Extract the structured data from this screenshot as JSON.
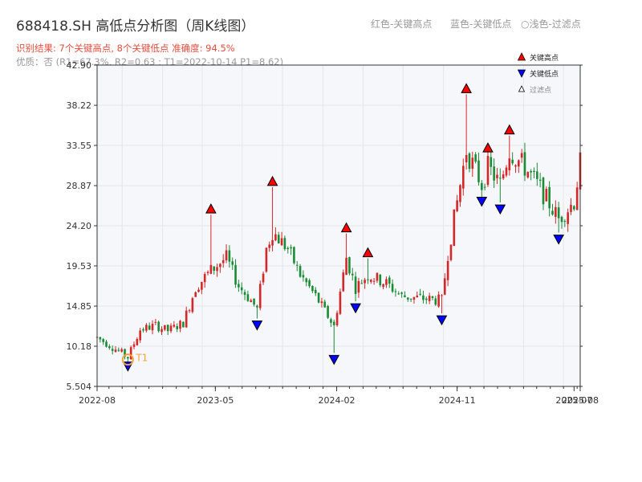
{
  "header": {
    "title": "688418.SH 高低点分析图（周K线图）",
    "result": "识别结果: 7个关键高点, 8个关键低点  准确度: 94.5%",
    "quality": "优质：否  (R1=67.3%, R2=0.63 ; T1=2022-10-14 P1=8.62)",
    "legend_red": "红色-关键高点",
    "legend_blue": "蓝色-关键低点",
    "legend_light": "○浅色-过滤点"
  },
  "colors": {
    "up": "#d62728",
    "down": "#1a8c35",
    "high_marker": "#ff0000",
    "low_marker": "#0000ff",
    "t1_marker": "#f2a43a",
    "plot_bg": "#f5f7fa"
  },
  "chart_data": {
    "type": "candlestick",
    "x_start": "2022-08-05",
    "x_end": "2025-08-08",
    "interval": "weekly",
    "ylim": [
      5.504,
      42.9
    ],
    "yticks": [
      "5.504",
      "10.18",
      "14.85",
      "19.53",
      "24.20",
      "28.87",
      "33.55",
      "38.22",
      "42.90"
    ],
    "xticks": [
      "2022-08",
      "2023-05",
      "2024-02",
      "2024-11",
      "2025-07",
      "2025-08"
    ],
    "legend": {
      "high": "关键高点",
      "low": "关键低点",
      "filtered": "过滤点"
    },
    "key_highs": [
      {
        "date": "2023-04-21",
        "value": 25.5
      },
      {
        "date": "2023-09-08",
        "value": 28.7
      },
      {
        "date": "2024-02-23",
        "value": 23.3
      },
      {
        "date": "2024-04-12",
        "value": 20.4
      },
      {
        "date": "2024-11-22",
        "value": 39.5
      },
      {
        "date": "2025-01-10",
        "value": 32.6
      },
      {
        "date": "2025-02-28",
        "value": 34.7
      }
    ],
    "key_lows": [
      {
        "date": "2022-10-14",
        "value": 8.62
      },
      {
        "date": "2023-08-04",
        "value": 13.4
      },
      {
        "date": "2024-01-26",
        "value": 9.4
      },
      {
        "date": "2024-03-15",
        "value": 15.4
      },
      {
        "date": "2024-09-27",
        "value": 14.0
      },
      {
        "date": "2024-12-27",
        "value": 27.8
      },
      {
        "date": "2025-02-07",
        "value": 26.9
      },
      {
        "date": "2025-06-20",
        "value": 23.4
      }
    ],
    "t1": {
      "label": "T1",
      "date": "2022-10-14",
      "value": 8.62
    },
    "anchors": [
      [
        "2022-08-05",
        11.2
      ],
      [
        "2022-09-02",
        10.3
      ],
      [
        "2022-10-14",
        8.9
      ],
      [
        "2022-11-11",
        12.1
      ],
      [
        "2022-12-16",
        12.6
      ],
      [
        "2023-01-13",
        12.0
      ],
      [
        "2023-02-17",
        12.9
      ],
      [
        "2023-03-17",
        17.0
      ],
      [
        "2023-04-21",
        19.0
      ],
      [
        "2023-05-26",
        20.5
      ],
      [
        "2023-06-23",
        17.2
      ],
      [
        "2023-07-21",
        15.5
      ],
      [
        "2023-08-04",
        14.5
      ],
      [
        "2023-08-25",
        21.5
      ],
      [
        "2023-09-08",
        23.5
      ],
      [
        "2023-10-13",
        21.5
      ],
      [
        "2023-11-10",
        18.5
      ],
      [
        "2023-12-15",
        16.0
      ],
      [
        "2024-01-26",
        12.5
      ],
      [
        "2024-02-23",
        20.5
      ],
      [
        "2024-03-15",
        17.0
      ],
      [
        "2024-04-12",
        18.5
      ],
      [
        "2024-05-24",
        17.5
      ],
      [
        "2024-06-28",
        16.0
      ],
      [
        "2024-08-02",
        15.8
      ],
      [
        "2024-09-27",
        15.5
      ],
      [
        "2024-10-11",
        21.0
      ],
      [
        "2024-11-01",
        27.0
      ],
      [
        "2024-11-22",
        33.0
      ],
      [
        "2024-12-27",
        29.0
      ],
      [
        "2025-01-10",
        31.0
      ],
      [
        "2025-02-07",
        29.0
      ],
      [
        "2025-02-28",
        33.0
      ],
      [
        "2025-04-04",
        31.0
      ],
      [
        "2025-05-09",
        28.5
      ],
      [
        "2025-06-20",
        25.0
      ],
      [
        "2025-07-25",
        27.0
      ],
      [
        "2025-08-08",
        31.5
      ]
    ]
  }
}
